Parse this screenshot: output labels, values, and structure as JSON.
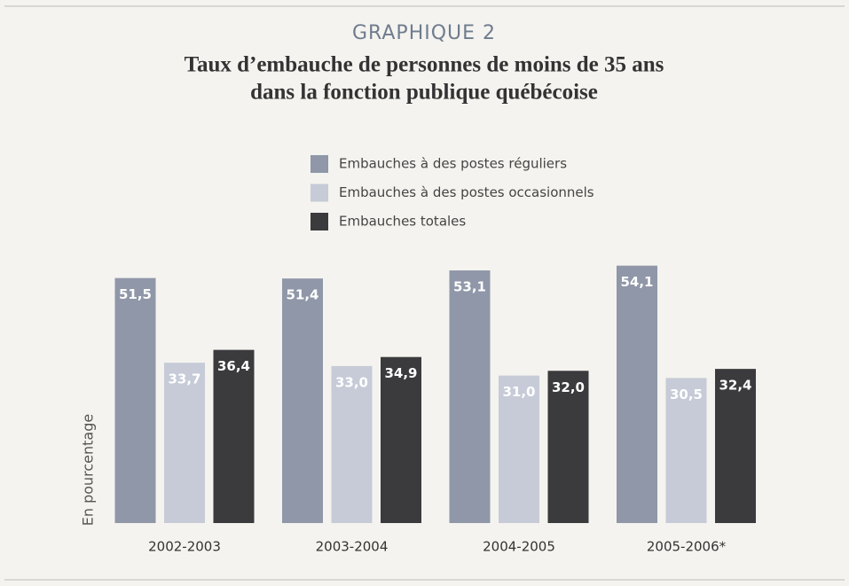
{
  "chart_data": {
    "type": "bar",
    "title": "GRAPHIQUE 2",
    "subtitle": [
      "Taux d’embauche de personnes de moins de 35 ans",
      "dans la fonction publique québécoise"
    ],
    "ylabel": "En pourcentage",
    "categories": [
      "2002-2003",
      "2003-2004",
      "2004-2005",
      "2005-2006*"
    ],
    "series": [
      {
        "name": "Embauches à des postes réguliers",
        "color": "#8f97a8",
        "values": [
          51.5,
          51.4,
          53.1,
          54.1
        ],
        "value_labels": [
          "51,5",
          "51,4",
          "53,1",
          "54,1"
        ]
      },
      {
        "name": "Embauches à des postes occasionnels",
        "color": "#c6cbd7",
        "values": [
          33.7,
          33.0,
          31.0,
          30.5
        ],
        "value_labels": [
          "33,7",
          "33,0",
          "31,0",
          "30,5"
        ]
      },
      {
        "name": "Embauches totales",
        "color": "#3b3b3d",
        "values": [
          36.4,
          34.9,
          32.0,
          32.4
        ],
        "value_labels": [
          "36,4",
          "34,9",
          "32,0",
          "32,4"
        ]
      }
    ],
    "ylim": [
      0,
      60
    ]
  }
}
